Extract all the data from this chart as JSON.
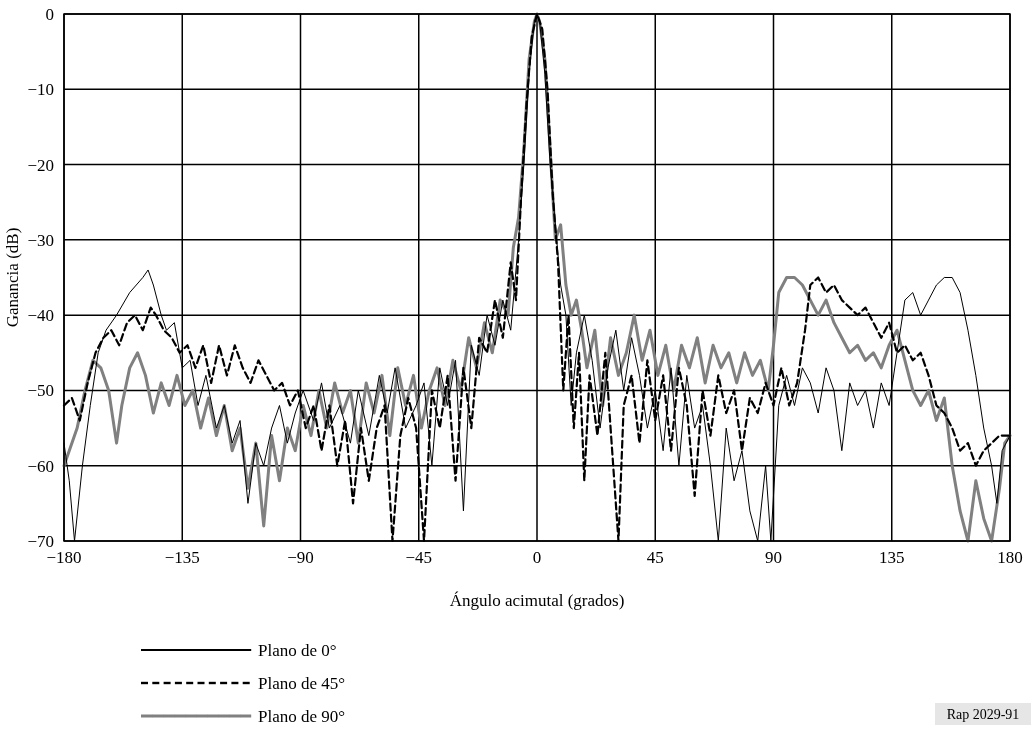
{
  "chart_data": {
    "type": "line",
    "xlabel": "Ángulo acimutal (grados)",
    "ylabel": "Ganancia (dB)",
    "xlim": [
      -180,
      180
    ],
    "xticks": [
      -180,
      -135,
      -90,
      -45,
      0,
      45,
      90,
      135,
      180
    ],
    "ylim": [
      -70,
      0
    ],
    "yticks": [
      -70,
      -60,
      -50,
      -40,
      -30,
      -20,
      -10,
      0
    ],
    "grid": true,
    "legend": "bottom left",
    "marker": "none",
    "annotations": [
      "Rap 2029-91"
    ],
    "series": [
      {
        "name": "Plano de 0°",
        "color": "#000000",
        "line_style": "solid",
        "x": [
          -180,
          -178,
          -176,
          -173,
          -170,
          -167,
          -164,
          -160,
          -155,
          -150,
          -148,
          -146,
          -143,
          -141,
          -138,
          -135,
          -132,
          -129,
          -126,
          -122,
          -119,
          -116,
          -113,
          -110,
          -107,
          -104,
          -101,
          -98,
          -95,
          -92,
          -89,
          -85,
          -82,
          -79,
          -75,
          -71,
          -68,
          -64,
          -60,
          -57,
          -54,
          -50,
          -46,
          -43,
          -40,
          -37,
          -34,
          -31,
          -28,
          -25,
          -22,
          -19,
          -16,
          -13,
          -10,
          -7,
          -5,
          -3,
          -1,
          0,
          1,
          3,
          5,
          7,
          9,
          11,
          13,
          15,
          18,
          21,
          24,
          27,
          30,
          33,
          36,
          39,
          42,
          45,
          48,
          51,
          54,
          57,
          60,
          63,
          66,
          69,
          72,
          75,
          78,
          81,
          84,
          87,
          89,
          92,
          95,
          98,
          101,
          104,
          107,
          110,
          113,
          116,
          119,
          122,
          125,
          128,
          131,
          134,
          137,
          140,
          143,
          146,
          149,
          152,
          155,
          158,
          161,
          164,
          167,
          170,
          173,
          175,
          177,
          180
        ],
        "values": [
          -57,
          -62,
          -70,
          -60,
          -52,
          -45,
          -42,
          -40,
          -37,
          -35,
          -34,
          -36,
          -40,
          -42,
          -41,
          -47,
          -46,
          -52,
          -48,
          -55,
          -52,
          -57,
          -54,
          -65,
          -57,
          -60,
          -55,
          -52,
          -57,
          -53,
          -50,
          -54,
          -49,
          -55,
          -52,
          -57,
          -50,
          -56,
          -48,
          -53,
          -47,
          -55,
          -52,
          -49,
          -60,
          -47,
          -52,
          -46,
          -66,
          -44,
          -48,
          -40,
          -44,
          -38,
          -42,
          -30,
          -20,
          -8,
          -1,
          0,
          -1,
          -8,
          -20,
          -28,
          -36,
          -40,
          -52,
          -45,
          -40,
          -46,
          -55,
          -47,
          -42,
          -50,
          -43,
          -48,
          -55,
          -50,
          -58,
          -47,
          -60,
          -48,
          -55,
          -52,
          -60,
          -70,
          -55,
          -62,
          -58,
          -66,
          -70,
          -60,
          -70,
          -52,
          -48,
          -52,
          -47,
          -49,
          -53,
          -47,
          -50,
          -58,
          -49,
          -52,
          -50,
          -55,
          -49,
          -52,
          -45,
          -38,
          -37,
          -40,
          -38,
          -36,
          -35,
          -35,
          -37,
          -42,
          -48,
          -55,
          -60,
          -65,
          -58,
          -56
        ]
      },
      {
        "name": "Plano de 45°",
        "color": "#000000",
        "line_style": "dashed",
        "x": [
          -180,
          -177,
          -174,
          -171,
          -168,
          -165,
          -162,
          -159,
          -156,
          -153,
          -150,
          -147,
          -145,
          -142,
          -139,
          -136,
          -133,
          -130,
          -127,
          -124,
          -121,
          -118,
          -115,
          -112,
          -109,
          -106,
          -103,
          -100,
          -97,
          -94,
          -91,
          -88,
          -85,
          -82,
          -79,
          -76,
          -73,
          -70,
          -67,
          -64,
          -61,
          -58,
          -55,
          -52,
          -49,
          -46,
          -43,
          -40,
          -37,
          -34,
          -31,
          -28,
          -25,
          -22,
          -19,
          -16,
          -13,
          -10,
          -8,
          -6,
          -4,
          -2,
          0,
          2,
          4,
          6,
          8,
          10,
          12,
          14,
          16,
          18,
          20,
          23,
          26,
          29,
          31,
          33,
          36,
          39,
          42,
          45,
          48,
          51,
          54,
          57,
          60,
          63,
          66,
          69,
          72,
          75,
          78,
          81,
          84,
          87,
          90,
          93,
          96,
          99,
          102,
          104,
          107,
          110,
          113,
          116,
          119,
          122,
          125,
          128,
          131,
          134,
          137,
          140,
          143,
          146,
          149,
          152,
          155,
          158,
          161,
          164,
          167,
          170,
          173,
          176,
          180
        ],
        "values": [
          -52,
          -51,
          -54,
          -49,
          -45,
          -43,
          -42,
          -44,
          -41,
          -40,
          -42,
          -39,
          -40,
          -42,
          -43,
          -45,
          -44,
          -47,
          -44,
          -49,
          -44,
          -48,
          -44,
          -47,
          -49,
          -46,
          -48,
          -50,
          -49,
          -52,
          -50,
          -55,
          -52,
          -58,
          -52,
          -60,
          -54,
          -65,
          -55,
          -62,
          -55,
          -52,
          -70,
          -56,
          -51,
          -55,
          -70,
          -50,
          -55,
          -48,
          -62,
          -47,
          -55,
          -43,
          -45,
          -38,
          -43,
          -33,
          -38,
          -24,
          -12,
          -3,
          0,
          -2,
          -10,
          -24,
          -33,
          -50,
          -40,
          -55,
          -45,
          -62,
          -48,
          -56,
          -45,
          -60,
          -70,
          -52,
          -48,
          -57,
          -46,
          -54,
          -48,
          -58,
          -47,
          -52,
          -64,
          -50,
          -56,
          -48,
          -53,
          -50,
          -58,
          -51,
          -53,
          -49,
          -52,
          -47,
          -52,
          -49,
          -42,
          -36,
          -35,
          -37,
          -36,
          -38,
          -39,
          -40,
          -39,
          -41,
          -43,
          -41,
          -45,
          -44,
          -46,
          -45,
          -48,
          -52,
          -53,
          -55,
          -58,
          -57,
          -60,
          -58,
          -57,
          -56,
          -56
        ]
      },
      {
        "name": "Plano de 90°",
        "color": "#808080",
        "line_style": "solid",
        "x": [
          -180,
          -178,
          -175,
          -172,
          -169,
          -166,
          -163,
          -160,
          -158,
          -155,
          -152,
          -149,
          -146,
          -143,
          -140,
          -137,
          -134,
          -131,
          -128,
          -125,
          -122,
          -119,
          -116,
          -113,
          -110,
          -107,
          -104,
          -101,
          -98,
          -95,
          -92,
          -89,
          -86,
          -83,
          -80,
          -77,
          -74,
          -71,
          -68,
          -65,
          -62,
          -59,
          -56,
          -53,
          -50,
          -47,
          -44,
          -41,
          -38,
          -35,
          -32,
          -29,
          -26,
          -23,
          -20,
          -17,
          -14,
          -11,
          -9,
          -7,
          -5,
          -3,
          -1,
          0,
          1,
          3,
          5,
          6,
          7,
          9,
          11,
          13,
          15,
          17,
          19,
          22,
          25,
          28,
          31,
          34,
          37,
          40,
          43,
          46,
          49,
          52,
          55,
          58,
          61,
          64,
          67,
          70,
          73,
          76,
          79,
          82,
          85,
          88,
          90,
          92,
          95,
          98,
          101,
          104,
          107,
          110,
          113,
          116,
          119,
          122,
          125,
          128,
          131,
          134,
          137,
          140,
          143,
          146,
          149,
          152,
          155,
          158,
          161,
          164,
          167,
          170,
          173,
          176,
          178,
          180
        ],
        "values": [
          -60,
          -58,
          -55,
          -50,
          -46,
          -47,
          -50,
          -57,
          -52,
          -47,
          -45,
          -48,
          -53,
          -49,
          -52,
          -48,
          -52,
          -50,
          -55,
          -51,
          -56,
          -52,
          -58,
          -55,
          -63,
          -57,
          -68,
          -56,
          -62,
          -55,
          -58,
          -52,
          -56,
          -50,
          -55,
          -49,
          -53,
          -50,
          -57,
          -49,
          -53,
          -48,
          -56,
          -47,
          -52,
          -48,
          -55,
          -50,
          -47,
          -52,
          -46,
          -50,
          -43,
          -47,
          -41,
          -45,
          -38,
          -40,
          -31,
          -27,
          -18,
          -6,
          -1,
          0,
          -1,
          -6,
          -18,
          -24,
          -30,
          -28,
          -36,
          -40,
          -38,
          -42,
          -47,
          -42,
          -52,
          -43,
          -48,
          -45,
          -40,
          -46,
          -42,
          -48,
          -44,
          -50,
          -44,
          -47,
          -43,
          -49,
          -44,
          -47,
          -45,
          -49,
          -45,
          -48,
          -46,
          -50,
          -44,
          -37,
          -35,
          -35,
          -36,
          -38,
          -40,
          -38,
          -41,
          -43,
          -45,
          -44,
          -46,
          -45,
          -47,
          -44,
          -42,
          -46,
          -50,
          -52,
          -50,
          -54,
          -51,
          -60,
          -66,
          -70,
          -62,
          -67,
          -70,
          -63,
          -57,
          -56
        ]
      }
    ]
  }
}
